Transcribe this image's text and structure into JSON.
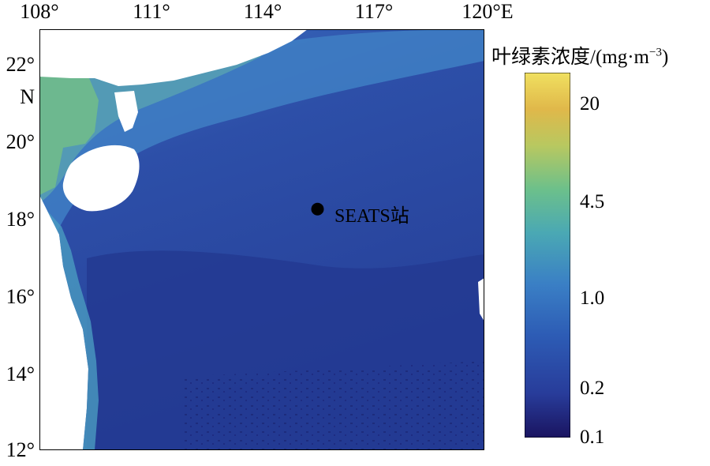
{
  "map": {
    "lon_labels": [
      "108°",
      "111°",
      "114°",
      "117°",
      "120°E"
    ],
    "lat_labels": [
      "22°",
      "20°",
      "18°",
      "16°",
      "14°",
      "12°"
    ],
    "north_label": "N",
    "station": {
      "label": "SEATS站",
      "lon": 115.5,
      "lat": 18.3
    },
    "lon_range": [
      108,
      120
    ],
    "lat_range": [
      12,
      23
    ],
    "ocean_color": "#2f4ea0"
  },
  "colorbar": {
    "title": "叶绿素浓度/(mg·m",
    "title_sup": "−3",
    "title_close": ")",
    "ticks": [
      "20",
      "4.5",
      "1.0",
      "0.2",
      "0.1"
    ],
    "tick_values": [
      20,
      4.5,
      1.0,
      0.2,
      0.1
    ],
    "colors": [
      "#1a1460",
      "#283c9a",
      "#2d5cb5",
      "#3a7fc5",
      "#4aa8b4",
      "#6cc08b",
      "#b8c860",
      "#e0b84a",
      "#f0e060"
    ]
  }
}
